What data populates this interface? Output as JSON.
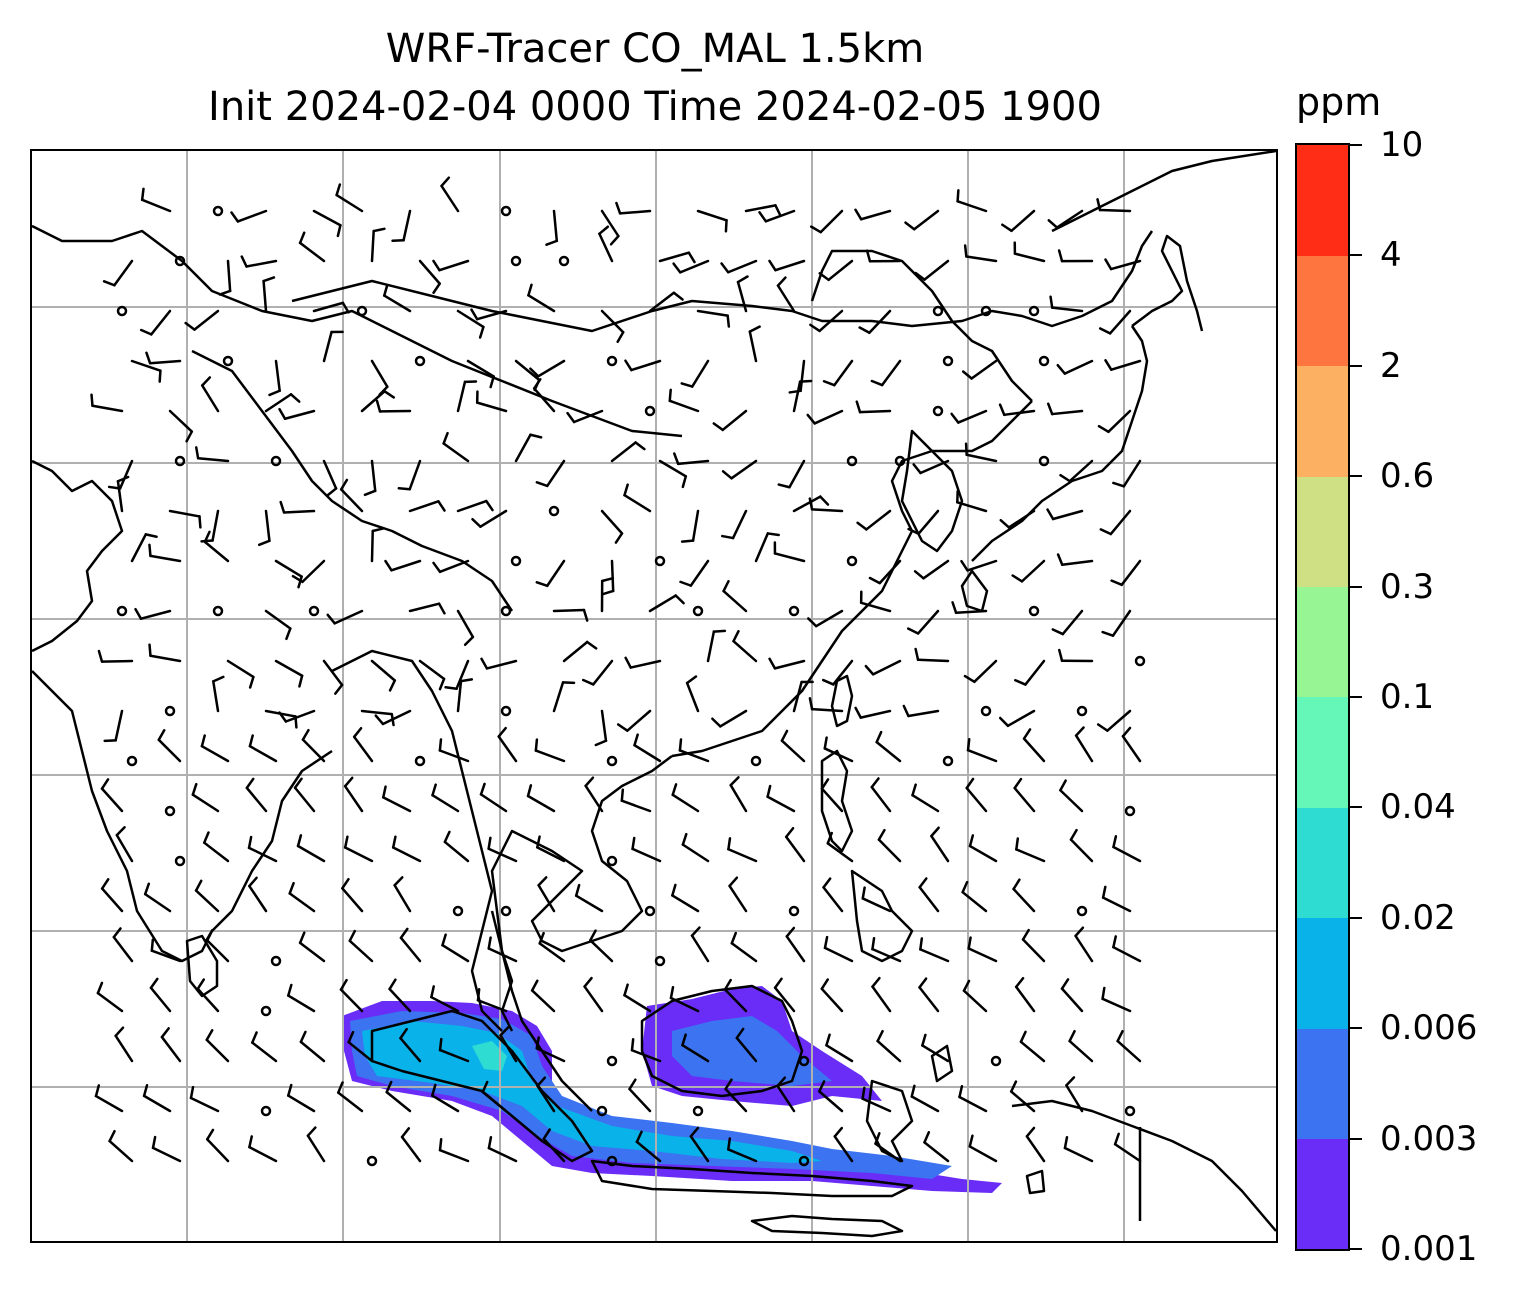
{
  "title": {
    "line1": "WRF-Tracer CO_MAL 1.5km",
    "line2": "Init 2024-02-04 0000 Time 2024-02-05 1900"
  },
  "colorbar": {
    "unit": "ppm",
    "levels": [
      "0.001",
      "0.003",
      "0.006",
      "0.02",
      "0.04",
      "0.1",
      "0.3",
      "0.6",
      "2",
      "4",
      "10"
    ],
    "colors": [
      "#6a2cf7",
      "#3b73f0",
      "#0ab2ea",
      "#2fdcd2",
      "#65f7b7",
      "#98f593",
      "#cfe084",
      "#fcb062",
      "#ff7540",
      "#ff2d16"
    ]
  },
  "map": {
    "gridlines": true,
    "layers": [
      "coastlines",
      "country-borders",
      "wind-barbs",
      "tracer-shading"
    ]
  }
}
